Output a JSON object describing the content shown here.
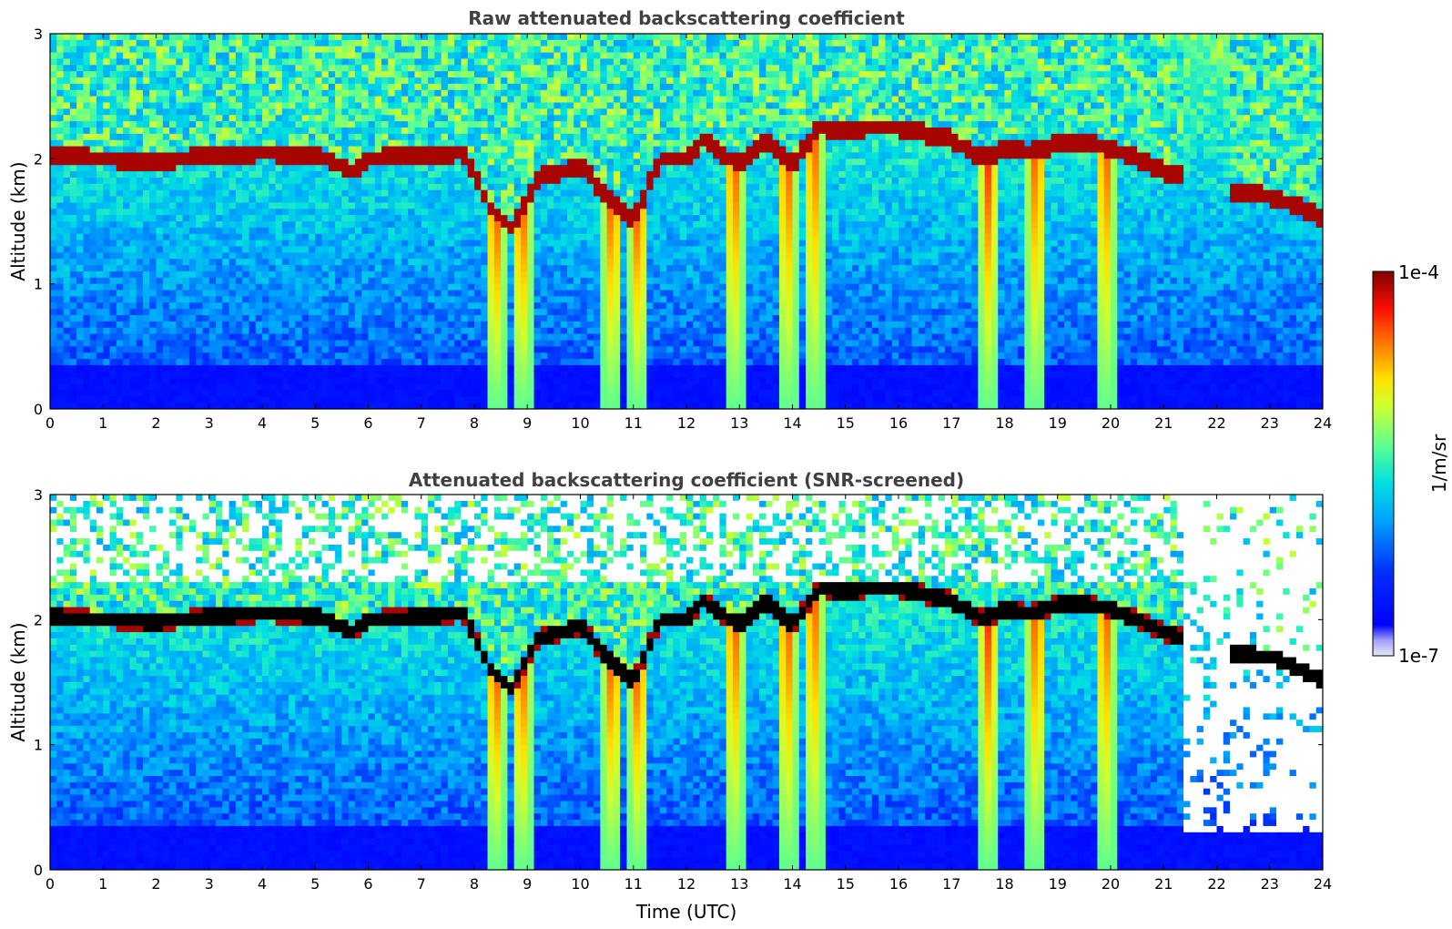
{
  "chart_data": [
    {
      "type": "heatmap",
      "title": "Raw attenuated backscattering coefficient",
      "xlabel": "",
      "ylabel": "Altitude (km)",
      "xlim": [
        0,
        24
      ],
      "ylim": [
        0,
        3
      ],
      "x_ticks": [
        "0",
        "1",
        "2",
        "3",
        "4",
        "5",
        "6",
        "7",
        "8",
        "9",
        "10",
        "11",
        "12",
        "13",
        "14",
        "15",
        "16",
        "17",
        "18",
        "19",
        "20",
        "21",
        "22",
        "23",
        "24"
      ],
      "y_ticks": [
        "0",
        "1",
        "2",
        "3"
      ],
      "cloud_layer": {
        "time_utc": [
          0,
          1,
          2,
          3,
          4,
          5,
          5.7,
          6,
          7,
          7.8,
          8.3,
          8.7,
          9.2,
          9.7,
          10,
          10.5,
          11,
          11.5,
          12,
          12.3,
          13,
          13.5,
          14,
          14.5,
          15,
          15.5,
          16,
          16.5,
          17,
          17.6,
          18,
          18.5,
          19,
          19.5,
          20,
          20.5,
          21,
          21.4
        ],
        "altitude_km": [
          2.02,
          2.0,
          1.98,
          2.02,
          2.05,
          2.03,
          1.9,
          2.0,
          2.02,
          2.05,
          1.6,
          1.45,
          1.85,
          1.9,
          1.95,
          1.7,
          1.5,
          2.0,
          2.0,
          2.15,
          1.95,
          2.15,
          1.95,
          2.25,
          2.22,
          2.25,
          2.25,
          2.2,
          2.15,
          2.0,
          2.08,
          2.05,
          2.12,
          2.13,
          2.08,
          2.0,
          1.9,
          1.85
        ]
      },
      "secondary_layer": {
        "time_utc": [
          22.2,
          22.6,
          23,
          23.5,
          24
        ],
        "altitude_km": [
          1.72,
          1.72,
          1.7,
          1.62,
          1.52
        ]
      },
      "precipitation_streaks_time_utc": [
        8.4,
        8.9,
        10.6,
        11.1,
        12.9,
        13.9,
        14.4,
        17.7,
        18.6,
        19.9
      ]
    },
    {
      "type": "heatmap",
      "title": "Attenuated backscattering coefficient (SNR-screened)",
      "xlabel": "Time (UTC)",
      "ylabel": "Altitude (km)",
      "xlim": [
        0,
        24
      ],
      "ylim": [
        0,
        3
      ],
      "x_ticks": [
        "0",
        "1",
        "2",
        "3",
        "4",
        "5",
        "6",
        "7",
        "8",
        "9",
        "10",
        "11",
        "12",
        "13",
        "14",
        "15",
        "16",
        "17",
        "18",
        "19",
        "20",
        "21",
        "22",
        "23",
        "24"
      ],
      "y_ticks": [
        "0",
        "1",
        "2",
        "3"
      ]
    }
  ],
  "colorbar": {
    "label": "1/m/sr",
    "max_label": "1e-4",
    "min_label": "1e-7",
    "scale": "log",
    "colormap": "jet",
    "colors": [
      "#e8e8f6",
      "#0000ff",
      "#00bfff",
      "#40ff80",
      "#ffff00",
      "#ff8000",
      "#ff0000",
      "#800000"
    ]
  }
}
